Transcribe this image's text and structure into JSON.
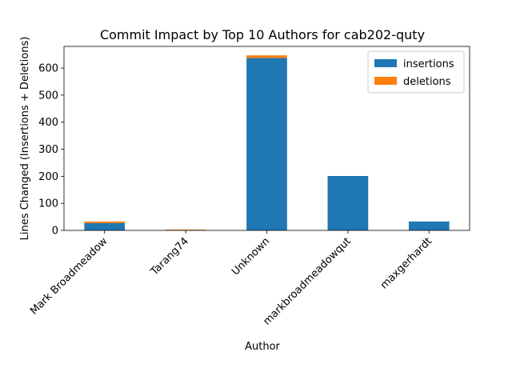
{
  "chart_data": {
    "type": "bar",
    "stacked": true,
    "title": "Commit Impact by Top 10 Authors for cab202-quty",
    "xlabel": "Author",
    "ylabel": "Lines Changed (Insertions + Deletions)",
    "categories": [
      "Mark Broadmeadow",
      "Tarang74",
      "Unknown",
      "markbroadmeadowqut",
      "maxgerhardt"
    ],
    "series": [
      {
        "name": "insertions",
        "color": "#1f77b4",
        "values": [
          27,
          1,
          637,
          201,
          33
        ]
      },
      {
        "name": "deletions",
        "color": "#ff7f0e",
        "values": [
          6,
          2,
          10,
          0,
          0
        ]
      }
    ],
    "ylim": [
      0,
      680
    ],
    "yticks": [
      0,
      100,
      200,
      300,
      400,
      500,
      600
    ],
    "legend_position": "top-right",
    "grid": false
  }
}
